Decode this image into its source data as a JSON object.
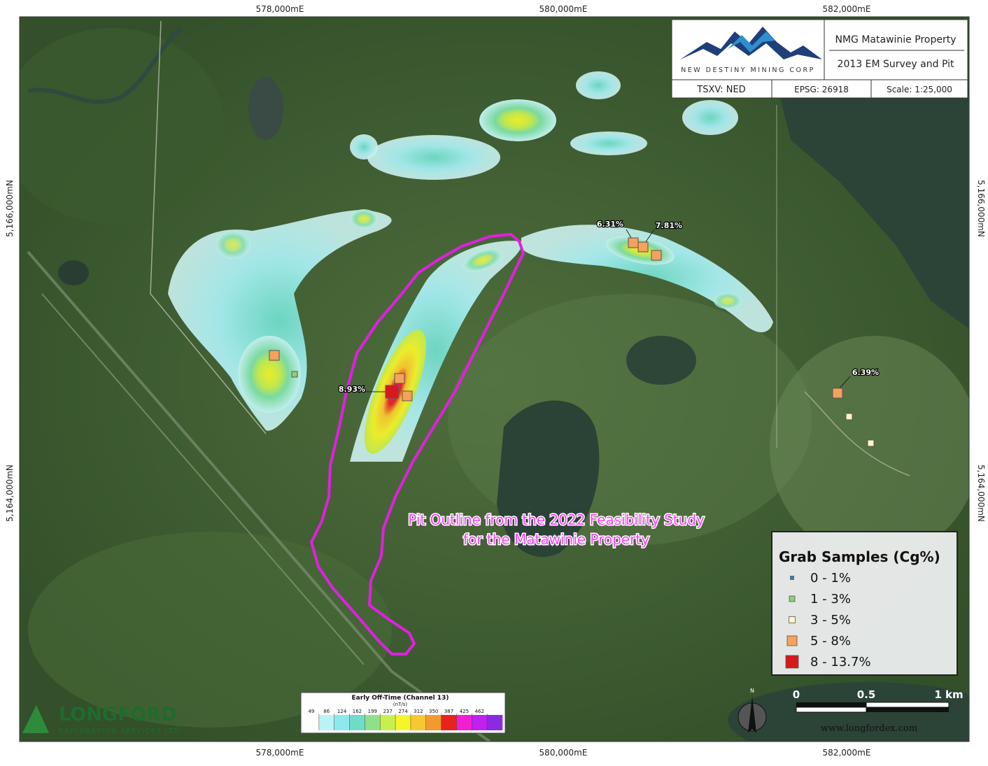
{
  "title_block": {
    "title": "NMG Matawinie Property",
    "subtitle": "2013 EM Survey and Pit",
    "company": "NEW DESTINY MINING CORP",
    "info": [
      "TSXV: NED",
      "EPSG: 26918",
      "Scale: 1:25,000"
    ]
  },
  "grid_labels": {
    "easting": [
      "578,000mE",
      "580,000mE",
      "582,000mE"
    ],
    "northing": [
      "5,166,000mN",
      "5,164,000mN"
    ]
  },
  "sample_labels": [
    "6.31%",
    "7.81%",
    "8.93%",
    "6.39%"
  ],
  "annotation": [
    "Pit Outline from the 2022 Feasibility Study",
    "for the Matawinie Property"
  ],
  "legend": {
    "title": "Grab Samples (Cg%)",
    "classes": [
      {
        "label": "0 - 1%",
        "color": "#2f7fc1"
      },
      {
        "label": "1 - 3%",
        "color": "#8fce7a"
      },
      {
        "label": "3 - 5%",
        "color": "#fdf7c3"
      },
      {
        "label": "5 - 8%",
        "color": "#f7a15a"
      },
      {
        "label": "8 - 13.7%",
        "color": "#d7191c"
      }
    ]
  },
  "colorbar": {
    "title": "Early Off-Time (Channel 13)",
    "units": "(nT/s)",
    "ticks": [
      49,
      86,
      124,
      162,
      199,
      237,
      274,
      312,
      350,
      387,
      425,
      462
    ],
    "colors": [
      "#ffffff",
      "#b9f3f5",
      "#8ee8ec",
      "#6fdcc8",
      "#8fe08a",
      "#c8ef50",
      "#f5f52a",
      "#f8c832",
      "#f39a2e",
      "#e8231e",
      "#f020d0",
      "#c020f0",
      "#8a2be2"
    ]
  },
  "scalebar": {
    "labels": [
      "0",
      "0.5",
      "1 km"
    ]
  },
  "north": "N",
  "website": "www.longfordex.com",
  "logo": {
    "name": "LONGFORD",
    "tagline": "EXPLORATION SERVICES LTD"
  }
}
